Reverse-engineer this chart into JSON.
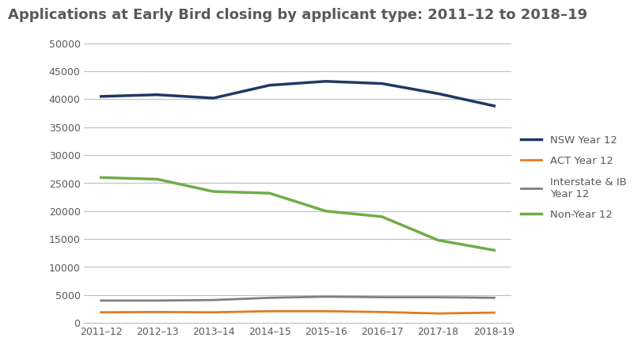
{
  "title": "Applications at Early Bird closing by applicant type: 2011–12 to 2018–19",
  "x_labels": [
    "2011–12",
    "2012–13",
    "2013–14",
    "2014–15",
    "2015–16",
    "2016–17",
    "2017-18",
    "2018-19"
  ],
  "series": [
    {
      "label": "NSW Year 12",
      "color": "#1f3864",
      "linewidth": 2.5,
      "values": [
        40500,
        40800,
        40200,
        42500,
        43200,
        42800,
        41000,
        38800
      ]
    },
    {
      "label": "ACT Year 12",
      "color": "#e07b20",
      "linewidth": 2.0,
      "values": [
        1900,
        1950,
        1900,
        2100,
        2100,
        1950,
        1700,
        1850
      ]
    },
    {
      "label": "Interstate & IB\nYear 12",
      "color": "#808080",
      "linewidth": 2.0,
      "values": [
        4000,
        4000,
        4100,
        4500,
        4700,
        4600,
        4600,
        4500
      ]
    },
    {
      "label": "Non-Year 12",
      "color": "#70ad47",
      "linewidth": 2.5,
      "values": [
        26000,
        25700,
        23500,
        23200,
        20000,
        19000,
        14800,
        13000
      ]
    }
  ],
  "ylim": [
    0,
    52000
  ],
  "yticks": [
    0,
    5000,
    10000,
    15000,
    20000,
    25000,
    30000,
    35000,
    40000,
    45000,
    50000
  ],
  "title_color": "#595959",
  "title_fontsize": 13,
  "tick_color": "#595959",
  "tick_fontsize": 9,
  "grid_color": "#bfbfbf",
  "background_color": "#ffffff",
  "legend_fontsize": 9.5
}
